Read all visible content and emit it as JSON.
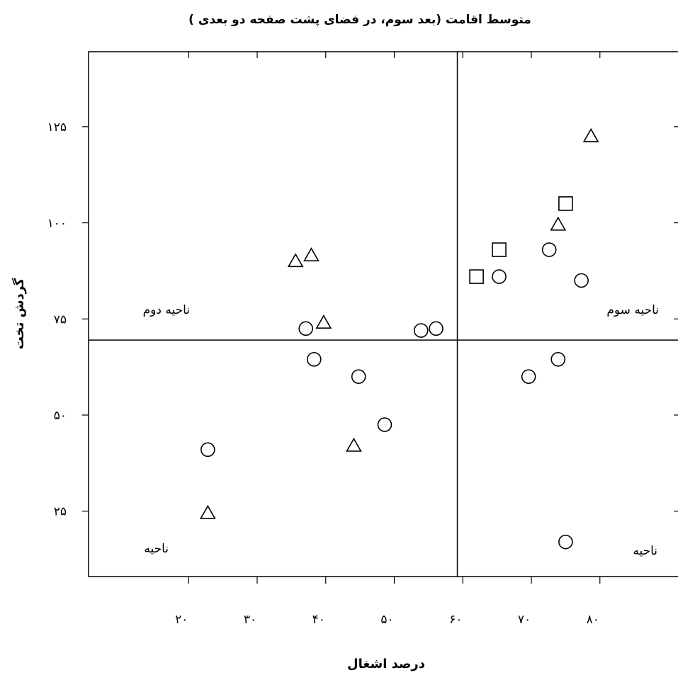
{
  "chart_data": {
    "type": "scatter",
    "title": "متوسط اقامت (بعد سوم، در فضای پشت صفحه دو بعدی )",
    "xlabel": "درصد اشغال",
    "ylabel": "گردش تخت",
    "x_ticks": [
      {
        "value": 20,
        "label": "۲۰"
      },
      {
        "value": 30,
        "label": "۳۰"
      },
      {
        "value": 40,
        "label": "۴۰"
      },
      {
        "value": 50,
        "label": "۵۰"
      },
      {
        "value": 60,
        "label": "۶۰"
      },
      {
        "value": 70,
        "label": "۷۰"
      },
      {
        "value": 80,
        "label": "۸۰"
      }
    ],
    "y_ticks": [
      {
        "value": 25,
        "label": "۲۵"
      },
      {
        "value": 50,
        "label": "۵۰"
      },
      {
        "value": 75,
        "label": "۷۵"
      },
      {
        "value": 100,
        "label": "۱۰۰"
      },
      {
        "value": 125,
        "label": "۱۲۵"
      }
    ],
    "xlim": [
      5.4,
      91.6
    ],
    "ylim": [
      8,
      144.5
    ],
    "x_divider": 59.2,
    "y_divider": 69.5,
    "region_labels": [
      {
        "text": "ناحیه دوم",
        "quadrant": "top-left"
      },
      {
        "text": "ناحیه سوم",
        "quadrant": "top-right"
      },
      {
        "text": "ناحیه",
        "quadrant": "bottom-left"
      },
      {
        "text": "ناحیه",
        "quadrant": "bottom-right"
      }
    ],
    "points": [
      {
        "x": 22.8,
        "y": 41.0,
        "shape": "circle"
      },
      {
        "x": 22.8,
        "y": 24.5,
        "shape": "triangle"
      },
      {
        "x": 35.6,
        "y": 90.0,
        "shape": "triangle"
      },
      {
        "x": 37.9,
        "y": 91.5,
        "shape": "triangle"
      },
      {
        "x": 37.1,
        "y": 72.5,
        "shape": "circle"
      },
      {
        "x": 39.7,
        "y": 74.0,
        "shape": "triangle"
      },
      {
        "x": 38.3,
        "y": 64.5,
        "shape": "circle"
      },
      {
        "x": 44.8,
        "y": 60.0,
        "shape": "circle"
      },
      {
        "x": 44.1,
        "y": 42.0,
        "shape": "triangle"
      },
      {
        "x": 48.6,
        "y": 47.5,
        "shape": "circle"
      },
      {
        "x": 53.9,
        "y": 72.0,
        "shape": "circle"
      },
      {
        "x": 56.1,
        "y": 72.5,
        "shape": "circle"
      },
      {
        "x": 62.0,
        "y": 86.0,
        "shape": "square"
      },
      {
        "x": 65.3,
        "y": 86.0,
        "shape": "circle"
      },
      {
        "x": 65.3,
        "y": 93.0,
        "shape": "square"
      },
      {
        "x": 69.6,
        "y": 60.0,
        "shape": "circle"
      },
      {
        "x": 72.6,
        "y": 93.0,
        "shape": "circle"
      },
      {
        "x": 73.9,
        "y": 64.5,
        "shape": "circle"
      },
      {
        "x": 73.9,
        "y": 99.5,
        "shape": "triangle"
      },
      {
        "x": 75.0,
        "y": 105.0,
        "shape": "square"
      },
      {
        "x": 75.0,
        "y": 17.0,
        "shape": "circle"
      },
      {
        "x": 77.3,
        "y": 85.0,
        "shape": "circle"
      },
      {
        "x": 78.7,
        "y": 122.5,
        "shape": "triangle"
      }
    ]
  }
}
